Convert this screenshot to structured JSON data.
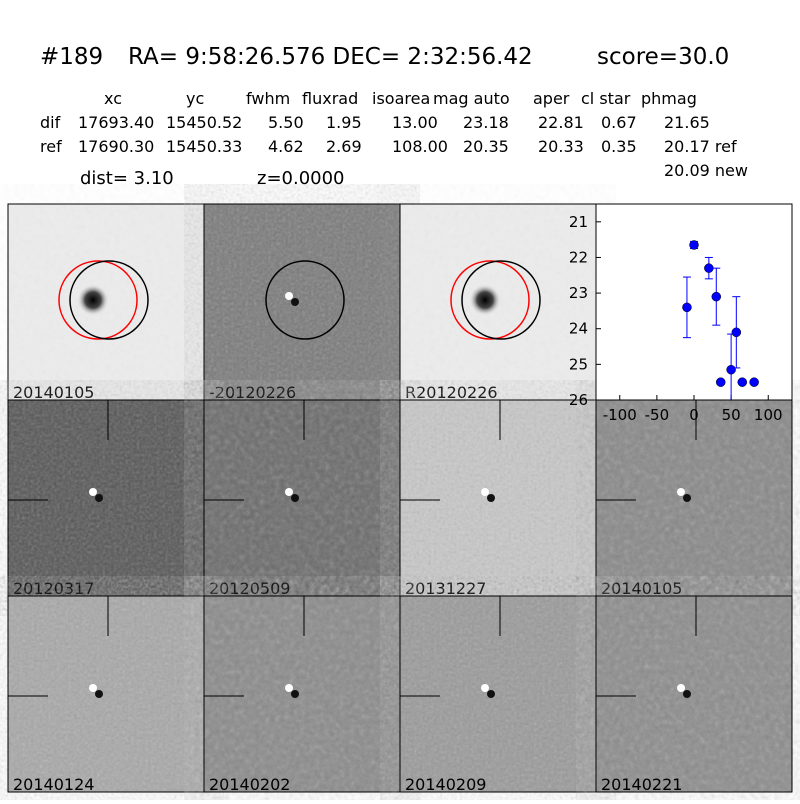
{
  "header": {
    "id": "#189",
    "coords": "RA= 9:58:26.576 DEC= 2:32:56.42",
    "score": "score=30.0"
  },
  "table": {
    "columns": [
      "xc",
      "yc",
      "fwhm",
      "fluxrad",
      "isoarea",
      "mag auto",
      "aper",
      "cl star",
      "phmag"
    ],
    "rows": [
      [
        "dif",
        "17693.40",
        "15450.52",
        "5.50",
        "1.95",
        "13.00",
        "23.18",
        "22.81",
        "0.67",
        "21.65"
      ],
      [
        "ref",
        "17690.30",
        "15450.33",
        "4.62",
        "2.69",
        "108.00",
        "20.35",
        "20.33",
        "0.35",
        "20.17 ref"
      ]
    ],
    "extra": "20.09 new"
  },
  "dist": "dist=  3.10",
  "z": "z=0.0000",
  "panels": [
    {
      "label": "20140105"
    },
    {
      "label": "-20120226"
    },
    {
      "label": "R20120226"
    },
    {
      "label": "20120317"
    },
    {
      "label": "20120509"
    },
    {
      "label": "20131227"
    },
    {
      "label": "20140105",
      "label_color": "#ff0000"
    },
    {
      "label": "20140124"
    },
    {
      "label": "20140202"
    },
    {
      "label": "20140209"
    },
    {
      "label": "20140221"
    }
  ],
  "chart_data": {
    "type": "errorbar",
    "x": [
      -9.5,
      0,
      20,
      30,
      36,
      50,
      57,
      65,
      81
    ],
    "series": [
      {
        "color": "#0000ff",
        "values": [
          23.4,
          21.65,
          22.3,
          23.1,
          25.5,
          25.15,
          24.1,
          25.5,
          25.5
        ],
        "errors": [
          0.85,
          0.1,
          0.3,
          0.8,
          0.05,
          1.0,
          1.0,
          0.05,
          0.05
        ]
      }
    ],
    "xlim": [
      -132,
      132
    ],
    "ylim": [
      26,
      20.5
    ],
    "xticks": [
      -100,
      -50,
      0,
      50,
      100
    ],
    "yticks": [
      21,
      22,
      23,
      24,
      25,
      26
    ]
  }
}
